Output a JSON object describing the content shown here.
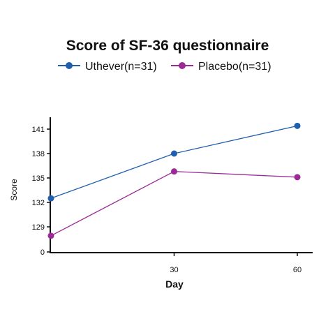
{
  "chart_data": {
    "type": "line",
    "title": "Score of SF-36 questionnaire",
    "xlabel": "Day",
    "ylabel": "Score",
    "x": [
      0,
      30,
      60
    ],
    "x_tick_labels": [
      "",
      "30",
      "60"
    ],
    "y_tick_labels": [
      "0",
      "129",
      "132",
      "135",
      "138",
      "141"
    ],
    "y_axis_break": true,
    "grid": false,
    "legend_position": "top",
    "series": [
      {
        "name": "Uthever(n=31)",
        "color": "#1f5fae",
        "values": [
          132.5,
          138.0,
          141.4
        ]
      },
      {
        "name": "Placebo(n=31)",
        "color": "#9b2a96",
        "values": [
          127.9,
          135.8,
          135.1
        ]
      }
    ]
  }
}
